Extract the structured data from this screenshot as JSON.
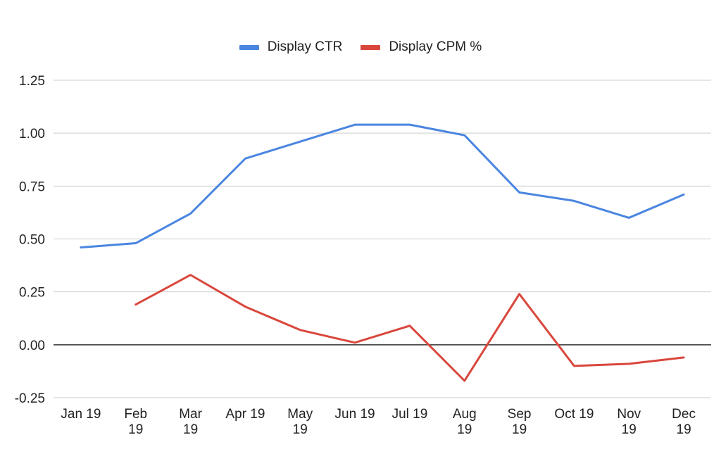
{
  "chart_data": {
    "type": "line",
    "title": "",
    "xlabel": "",
    "ylabel": "",
    "categories": [
      [
        "Jan 19"
      ],
      [
        "Feb",
        "19"
      ],
      [
        "Mar",
        "19"
      ],
      [
        "Apr 19"
      ],
      [
        "May",
        "19"
      ],
      [
        "Jun 19"
      ],
      [
        "Jul 19"
      ],
      [
        "Aug",
        "19"
      ],
      [
        "Sep",
        "19"
      ],
      [
        "Oct 19"
      ],
      [
        "Nov",
        "19"
      ],
      [
        "Dec",
        "19"
      ]
    ],
    "ylim": [
      -0.25,
      1.25
    ],
    "yticks": [
      "1.25",
      "1.00",
      "0.75",
      "0.50",
      "0.25",
      "0.00",
      "-0.25"
    ],
    "ytick_values": [
      1.25,
      1.0,
      0.75,
      0.5,
      0.25,
      0.0,
      -0.25
    ],
    "grid": true,
    "legend_position": "top-center",
    "series": [
      {
        "name": "Display CTR",
        "color": "#4a86e0",
        "values": [
          0.46,
          0.48,
          0.62,
          0.88,
          0.96,
          1.04,
          1.04,
          0.99,
          0.72,
          0.68,
          0.6,
          0.71
        ]
      },
      {
        "name": "Display CPM %",
        "color": "#d9473c",
        "values": [
          null,
          0.19,
          0.33,
          0.18,
          0.07,
          0.01,
          0.09,
          -0.17,
          0.24,
          -0.1,
          -0.09,
          -0.06
        ]
      }
    ]
  }
}
